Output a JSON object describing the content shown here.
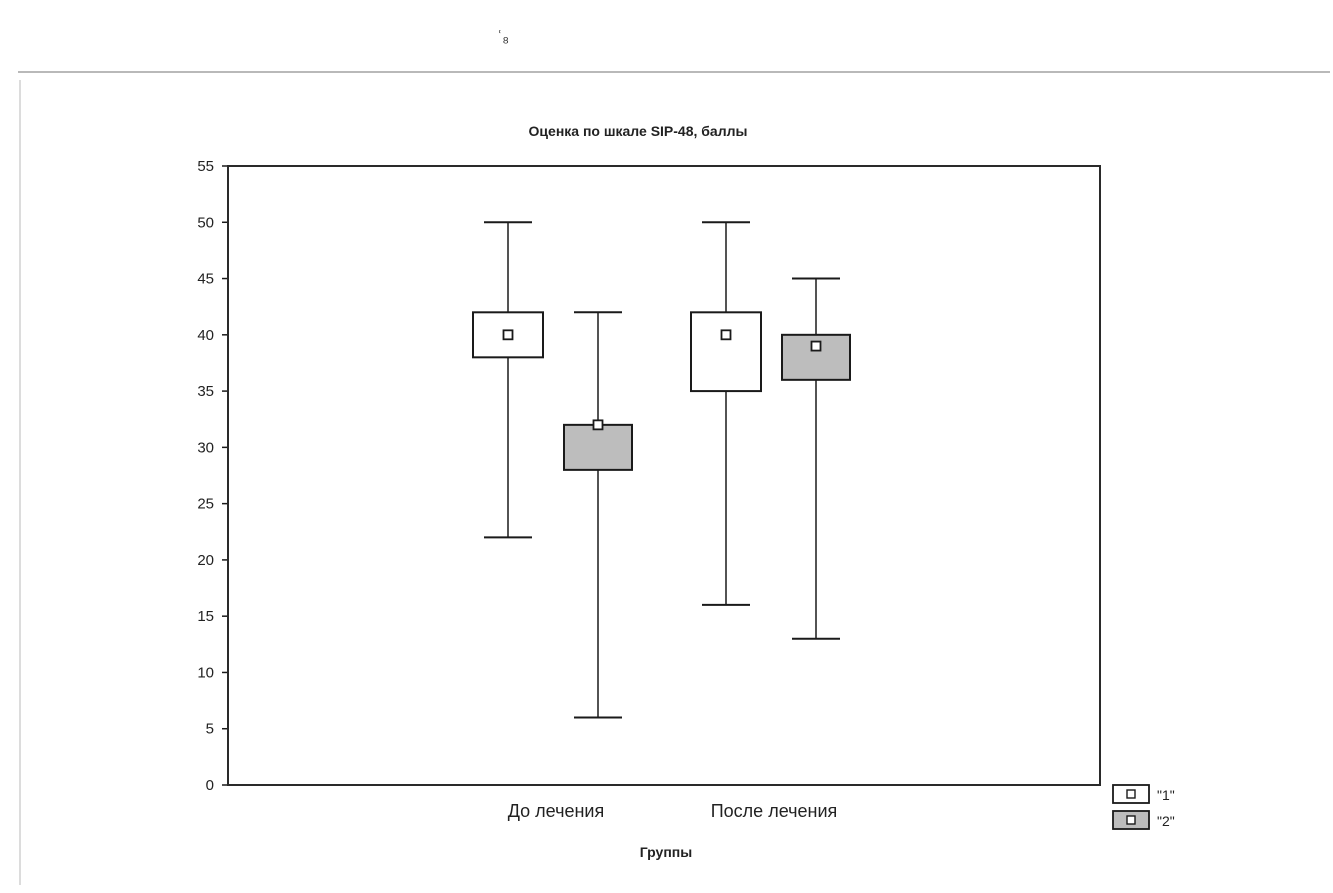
{
  "page_mark": "ʿ₈",
  "chart_data": {
    "type": "boxplot",
    "title": "Оценка по шкале SIP-48, баллы",
    "xlabel": "Группы",
    "ylabel": "",
    "ylim": [
      0,
      55
    ],
    "yticks": [
      "0",
      "5",
      "10",
      "15",
      "20",
      "25",
      "30",
      "35",
      "40",
      "45",
      "50",
      "55"
    ],
    "categories": [
      "До лечения",
      "После лечения"
    ],
    "legend_position": "bottom-right-outside",
    "series": [
      {
        "name": "\"1\"",
        "fill": "#ffffff",
        "boxes": [
          {
            "min": 22,
            "q1": 38,
            "median": 40,
            "q3": 42,
            "max": 50
          },
          {
            "min": 16,
            "q1": 35,
            "median": 40,
            "q3": 42,
            "max": 50
          }
        ]
      },
      {
        "name": "\"2\"",
        "fill": "#bdbdbd",
        "boxes": [
          {
            "min": 6,
            "q1": 28,
            "median": 32,
            "q3": 32,
            "max": 42
          },
          {
            "min": 13,
            "q1": 36,
            "median": 39,
            "q3": 40,
            "max": 45
          }
        ]
      }
    ],
    "colors": {
      "stroke": "#1a1a1a",
      "frame": "#2a2a2a"
    }
  }
}
